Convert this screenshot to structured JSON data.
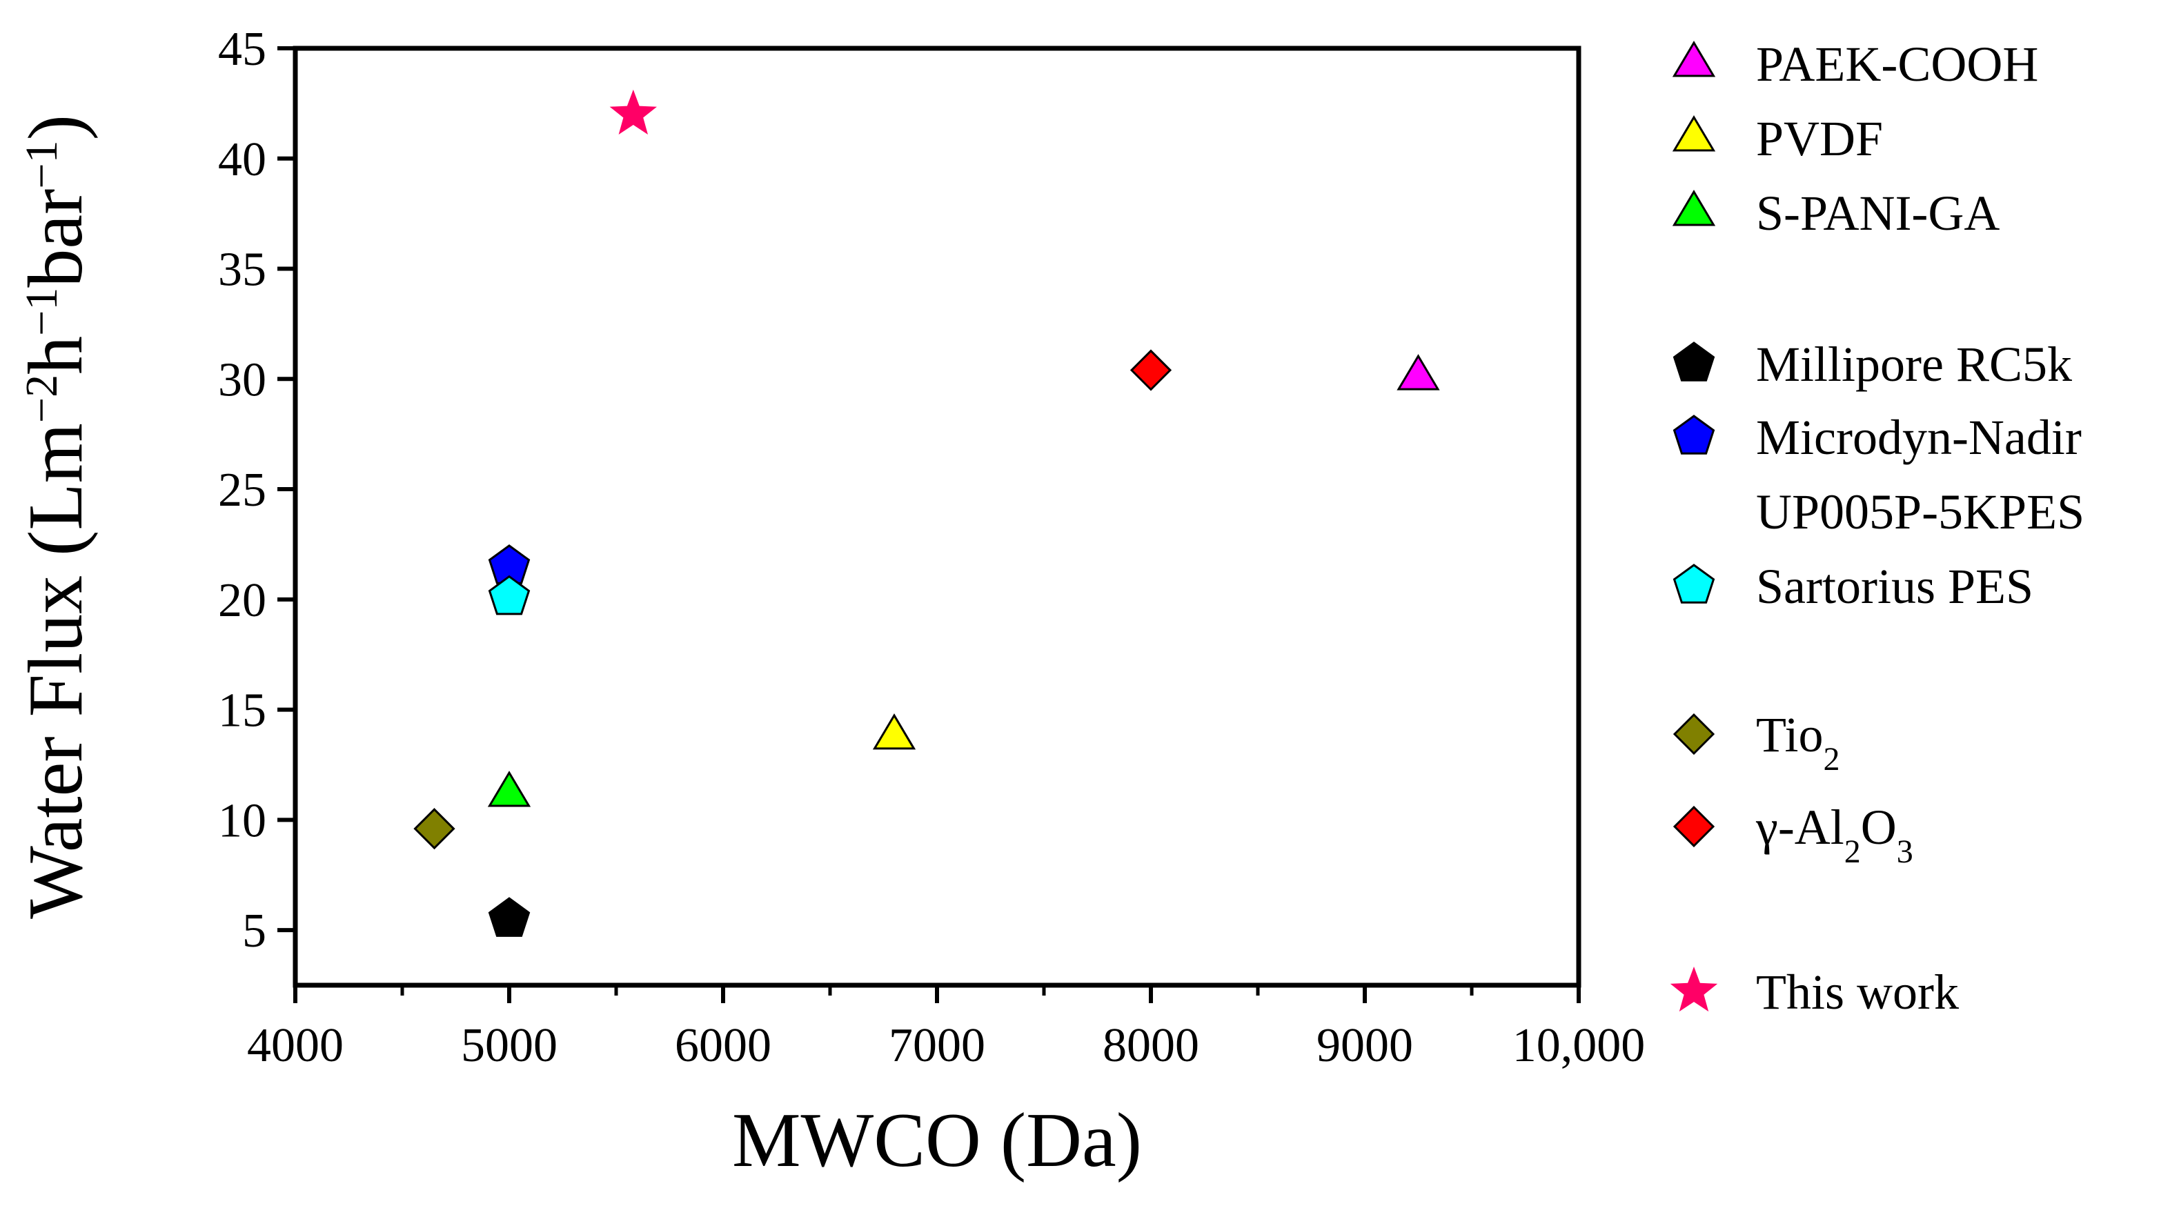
{
  "chart_data": {
    "type": "scatter",
    "title": "",
    "xlabel": "MWCO (Da)",
    "ylabel": {
      "parts": [
        {
          "t": "Water Flux (Lm"
        },
        {
          "t": "−2",
          "sup": true
        },
        {
          "t": "h"
        },
        {
          "t": "−1",
          "sup": true
        },
        {
          "t": "bar"
        },
        {
          "t": "−1",
          "sup": true
        },
        {
          "t": ")"
        }
      ]
    },
    "xlim": [
      4000,
      10000
    ],
    "ylim": [
      2.5,
      45
    ],
    "xticks": [
      4000,
      5000,
      6000,
      7000,
      8000,
      9000,
      10000
    ],
    "xtick_labels": [
      "4000",
      "5000",
      "6000",
      "7000",
      "8000",
      "9000",
      "10,000"
    ],
    "yticks": [
      5,
      10,
      15,
      20,
      25,
      30,
      35,
      40,
      45
    ],
    "ytick_labels": [
      "5",
      "10",
      "15",
      "20",
      "25",
      "30",
      "35",
      "40",
      "45"
    ],
    "grid": false,
    "legend_position": "right",
    "series": [
      {
        "name": "PAEK-COOH",
        "marker": "triangle",
        "color": "#ff00ff",
        "points": [
          {
            "x": 9250,
            "y": 30.1
          }
        ]
      },
      {
        "name": "PVDF",
        "marker": "triangle",
        "color": "#ffff00",
        "points": [
          {
            "x": 6800,
            "y": 13.8
          }
        ]
      },
      {
        "name": "S-PANI-GA",
        "marker": "triangle",
        "color": "#00ff00",
        "points": [
          {
            "x": 5000,
            "y": 11.2
          }
        ]
      },
      {
        "name": "Millipore RC5k",
        "marker": "pentagon",
        "color": "#000000",
        "points": [
          {
            "x": 5000,
            "y": 5.5
          }
        ]
      },
      {
        "name": "Microdyn-Nadir",
        "name2": "UP005P-5KPES",
        "marker": "pentagon",
        "color": "#0000ff",
        "points": [
          {
            "x": 5000,
            "y": 21.5
          }
        ]
      },
      {
        "name": "Sartorius PES",
        "marker": "pentagon",
        "color": "#00ffff",
        "points": [
          {
            "x": 5000,
            "y": 20.1
          }
        ]
      },
      {
        "name": "Tio",
        "sub": "2",
        "marker": "diamond",
        "color": "#808000",
        "points": [
          {
            "x": 4650,
            "y": 9.6
          }
        ]
      },
      {
        "name": "γ-Al",
        "sub": "2",
        "name_mid": "O",
        "sub2": "3",
        "marker": "diamond",
        "color": "#ff0000",
        "points": [
          {
            "x": 8000,
            "y": 30.4
          }
        ]
      },
      {
        "name": "This work",
        "marker": "star",
        "color": "#ff0066",
        "points": [
          {
            "x": 5580,
            "y": 42.0
          }
        ]
      }
    ]
  }
}
